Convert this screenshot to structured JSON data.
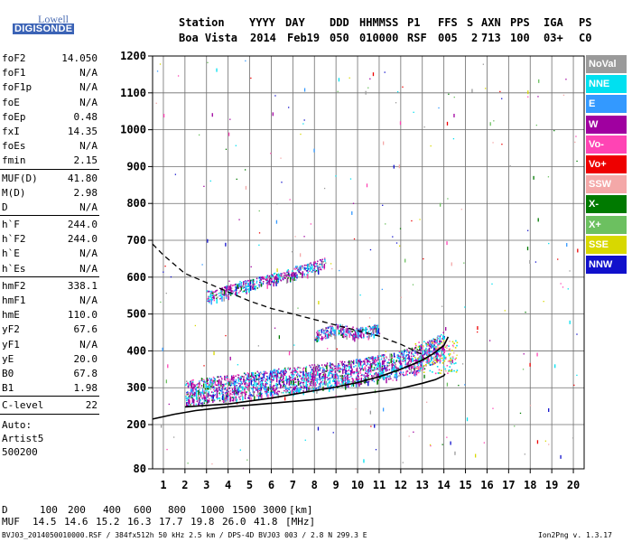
{
  "logo": {
    "line1": "Lowell",
    "line2": "DIGISONDE"
  },
  "header": {
    "labels": [
      "Station",
      "YYYY",
      "DAY",
      "DDD",
      "HHMMSS",
      "P1",
      "FFS",
      "S",
      "AXN",
      "PPS",
      "IGA",
      "PS"
    ],
    "values": [
      "Boa Vista",
      "2014",
      "Feb19",
      "050",
      "010000",
      "RSF",
      "005",
      "2",
      "713",
      "100",
      "03+",
      "C0"
    ]
  },
  "params": {
    "group1": [
      {
        "name": "foF2",
        "value": "14.050"
      },
      {
        "name": "foF1",
        "value": "N/A"
      },
      {
        "name": "foF1p",
        "value": "N/A"
      },
      {
        "name": "foE",
        "value": "N/A"
      },
      {
        "name": "foEp",
        "value": "0.48"
      },
      {
        "name": "fxI",
        "value": "14.35"
      },
      {
        "name": "foEs",
        "value": "N/A"
      },
      {
        "name": "fmin",
        "value": "2.15"
      }
    ],
    "group2": [
      {
        "name": "MUF(D)",
        "value": "41.80"
      },
      {
        "name": "M(D)",
        "value": "2.98"
      },
      {
        "name": "D",
        "value": "N/A"
      }
    ],
    "group3": [
      {
        "name": "h`F",
        "value": "244.0"
      },
      {
        "name": "h`F2",
        "value": "244.0"
      },
      {
        "name": "h`E",
        "value": "N/A"
      },
      {
        "name": "h`Es",
        "value": "N/A"
      }
    ],
    "group4": [
      {
        "name": "hmF2",
        "value": "338.1"
      },
      {
        "name": "hmF1",
        "value": "N/A"
      },
      {
        "name": "hmE",
        "value": "110.0"
      },
      {
        "name": "yF2",
        "value": "67.6"
      },
      {
        "name": "yF1",
        "value": "N/A"
      },
      {
        "name": "yE",
        "value": "20.0"
      },
      {
        "name": "B0",
        "value": "67.8"
      },
      {
        "name": "B1",
        "value": "1.98"
      }
    ],
    "group5": [
      {
        "name": "C-level",
        "value": "22"
      }
    ],
    "auto": [
      "Auto:",
      "Artist5",
      "500200"
    ]
  },
  "legend": [
    {
      "label": "NoVal",
      "color": "#9a9a9a"
    },
    {
      "label": "NNE",
      "color": "#00e0f0"
    },
    {
      "label": "E",
      "color": "#3399ff"
    },
    {
      "label": "W",
      "color": "#a000a0"
    },
    {
      "label": "Vo-",
      "color": "#ff44b4"
    },
    {
      "label": "Vo+",
      "color": "#ee0000"
    },
    {
      "label": "SSW",
      "color": "#f4a8a8"
    },
    {
      "label": "X-",
      "color": "#007a00"
    },
    {
      "label": "X+",
      "color": "#6cc060"
    },
    {
      "label": "SSE",
      "color": "#d8d800"
    },
    {
      "label": "NNW",
      "color": "#1010cc"
    }
  ],
  "chart_data": {
    "type": "scatter",
    "xlim": [
      0.5,
      20.5
    ],
    "ylim": [
      80,
      1200
    ],
    "x_ticks": [
      1,
      2,
      3,
      4,
      5,
      6,
      7,
      8,
      9,
      10,
      11,
      12,
      13,
      14,
      15,
      16,
      17,
      18,
      19,
      20
    ],
    "y_ticks": [
      80,
      200,
      300,
      400,
      500,
      600,
      700,
      800,
      900,
      1000,
      1100,
      1200
    ],
    "grid": true,
    "series": [
      {
        "name": "profile-true-height",
        "style": "solid",
        "x": [
          0.5,
          1.5,
          2.5,
          4,
          6,
          8,
          10,
          12,
          13,
          13.6,
          14,
          14.05
        ],
        "y": [
          215,
          228,
          238,
          248,
          258,
          268,
          282,
          298,
          312,
          322,
          333,
          338
        ]
      },
      {
        "name": "virtual-height-trace",
        "style": "solid",
        "x": [
          2,
          3,
          4,
          5,
          6,
          7,
          8,
          9,
          10,
          11,
          12,
          12.5,
          13,
          13.5,
          14,
          14.2
        ],
        "y": [
          248,
          252,
          256,
          264,
          272,
          282,
          292,
          302,
          314,
          330,
          350,
          362,
          375,
          392,
          415,
          438
        ]
      },
      {
        "name": "plasma-frequency-curve",
        "style": "dashed",
        "x": [
          0.5,
          1,
          2,
          3,
          4,
          5,
          6,
          7,
          8,
          9,
          10,
          11,
          12,
          13
        ],
        "y": [
          690,
          660,
          610,
          585,
          560,
          535,
          515,
          500,
          485,
          470,
          455,
          440,
          418,
          390
        ]
      },
      {
        "name": "ordinary-trace-o",
        "x": [
          2,
          2.5,
          3,
          3.5,
          4,
          4.5,
          5,
          5.5,
          6,
          6.5,
          7,
          7.5,
          8,
          8.5,
          9,
          9.5,
          10,
          10.5,
          11,
          11.5,
          12,
          12.5,
          13,
          13.5,
          14
        ],
        "y": [
          285,
          290,
          295,
          300,
          300,
          305,
          308,
          312,
          315,
          320,
          322,
          325,
          330,
          333,
          337,
          340,
          345,
          350,
          355,
          360,
          367,
          375,
          385,
          400,
          420
        ]
      },
      {
        "name": "second-hop",
        "x": [
          3,
          3.5,
          4,
          4.5,
          5,
          5.5,
          6,
          6.5,
          7,
          7.5,
          8,
          8.5
        ],
        "y": [
          550,
          555,
          565,
          575,
          580,
          590,
          595,
          605,
          615,
          620,
          630,
          640
        ]
      },
      {
        "name": "upper-cluster",
        "x": [
          8,
          8.5,
          9,
          9.5,
          10,
          10.5,
          11
        ],
        "y": [
          440,
          450,
          460,
          455,
          450,
          455,
          460
        ]
      }
    ]
  },
  "bottom": {
    "distance_label": "D",
    "distances": [
      "100",
      "200",
      "400",
      "600",
      "800",
      "1000",
      "1500",
      "3000",
      "[km]"
    ],
    "muf_label": "MUF",
    "mufs": [
      "14.5",
      "14.6",
      "15.2",
      "16.3",
      "17.7",
      "19.8",
      "26.0",
      "41.8",
      "[MHz]"
    ],
    "footer_left": "BVJ03_2014050010000.RSF / 384fx512h 50 kHz 2.5 km / DPS-4D BVJ03 003 / 2.8 N 299.3 E",
    "footer_right": "Ion2Png v. 1.3.17"
  }
}
